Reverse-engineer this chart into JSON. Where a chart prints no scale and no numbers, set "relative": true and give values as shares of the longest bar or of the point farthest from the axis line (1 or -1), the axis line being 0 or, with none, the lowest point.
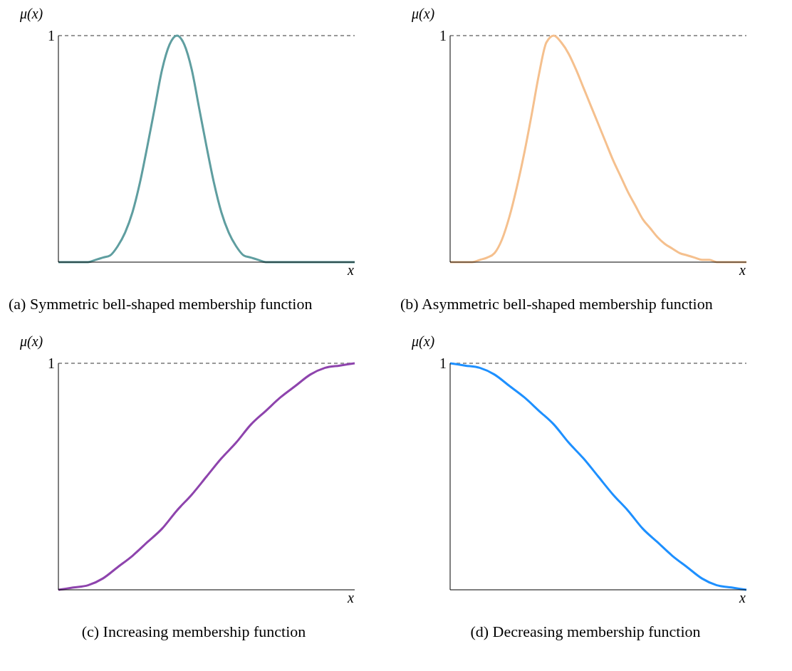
{
  "chart_data": [
    {
      "type": "line",
      "title": "(a) Symmetric bell-shaped membership function",
      "xlabel": "x",
      "ylabel": "μ(x)",
      "relative": true,
      "categories": [
        null,
        null,
        null,
        null,
        null,
        null,
        null,
        null,
        null,
        null,
        null,
        null,
        null,
        null,
        null,
        null,
        null,
        null,
        null,
        null,
        null,
        null,
        null,
        null,
        null,
        null,
        null,
        null,
        null,
        null,
        null,
        null,
        null,
        null,
        null,
        null,
        null,
        null,
        null,
        null,
        null
      ],
      "series": [
        {
          "color": "#5f9ea0",
          "values": [
            0,
            0,
            0,
            0,
            0,
            0.01,
            0.02,
            0.03,
            0.07,
            0.13,
            0.22,
            0.35,
            0.51,
            0.68,
            0.85,
            0.96,
            1,
            0.96,
            0.85,
            0.68,
            0.51,
            0.35,
            0.22,
            0.13,
            0.07,
            0.03,
            0.02,
            0.01,
            0,
            0,
            0,
            0,
            0,
            0,
            0,
            0,
            0,
            0,
            0,
            0,
            0
          ]
        }
      ],
      "ref_lines": [
        {
          "axis": "y",
          "value": 1,
          "label": "1",
          "color": "#333333",
          "line_style": "dashed"
        }
      ]
    },
    {
      "type": "line",
      "title": "(b) Asymmetric bell-shaped membership function",
      "xlabel": "x",
      "ylabel": "μ(x)",
      "relative": true,
      "categories": [
        null,
        null,
        null,
        null,
        null,
        null,
        null,
        null,
        null,
        null,
        null,
        null,
        null,
        null,
        null,
        null,
        null,
        null,
        null,
        null,
        null,
        null,
        null,
        null,
        null,
        null,
        null,
        null,
        null,
        null,
        null,
        null,
        null,
        null,
        null,
        null,
        null,
        null,
        null,
        null,
        null
      ],
      "series": [
        {
          "color": "#f5c08e",
          "values": [
            0,
            0,
            0,
            0,
            0.01,
            0.02,
            0.04,
            0.1,
            0.2,
            0.33,
            0.48,
            0.65,
            0.83,
            0.97,
            1,
            0.97,
            0.92,
            0.85,
            0.77,
            0.69,
            0.61,
            0.53,
            0.45,
            0.38,
            0.31,
            0.25,
            0.19,
            0.15,
            0.11,
            0.08,
            0.06,
            0.04,
            0.03,
            0.02,
            0.01,
            0.01,
            0,
            0,
            0,
            0,
            0
          ]
        }
      ],
      "ref_lines": [
        {
          "axis": "y",
          "value": 1,
          "label": "1",
          "color": "#333333",
          "line_style": "dashed"
        }
      ]
    },
    {
      "type": "line",
      "title": "(c) Increasing membership function",
      "xlabel": "x",
      "ylabel": "μ(x)",
      "relative": true,
      "categories": [
        null,
        null,
        null,
        null,
        null,
        null,
        null,
        null,
        null,
        null,
        null,
        null,
        null,
        null,
        null,
        null,
        null,
        null,
        null,
        null,
        null
      ],
      "series": [
        {
          "color": "#8e44ad",
          "values": [
            0,
            0.01,
            0.02,
            0.05,
            0.1,
            0.15,
            0.21,
            0.27,
            0.35,
            0.42,
            0.5,
            0.58,
            0.65,
            0.73,
            0.79,
            0.85,
            0.9,
            0.95,
            0.98,
            0.99,
            1
          ]
        }
      ],
      "ref_lines": [
        {
          "axis": "y",
          "value": 1,
          "label": "1",
          "color": "#333333",
          "line_style": "dashed"
        }
      ]
    },
    {
      "type": "line",
      "title": "(d) Decreasing membership function",
      "xlabel": "x",
      "ylabel": "μ(x)",
      "relative": true,
      "categories": [
        null,
        null,
        null,
        null,
        null,
        null,
        null,
        null,
        null,
        null,
        null,
        null,
        null,
        null,
        null,
        null,
        null,
        null,
        null,
        null,
        null
      ],
      "series": [
        {
          "color": "#1e90ff",
          "values": [
            1,
            0.99,
            0.98,
            0.95,
            0.9,
            0.85,
            0.79,
            0.73,
            0.65,
            0.58,
            0.5,
            0.42,
            0.35,
            0.27,
            0.21,
            0.15,
            0.1,
            0.05,
            0.02,
            0.01,
            0
          ]
        }
      ],
      "ref_lines": [
        {
          "axis": "y",
          "value": 1,
          "label": "1",
          "color": "#333333",
          "line_style": "dashed"
        }
      ]
    }
  ]
}
